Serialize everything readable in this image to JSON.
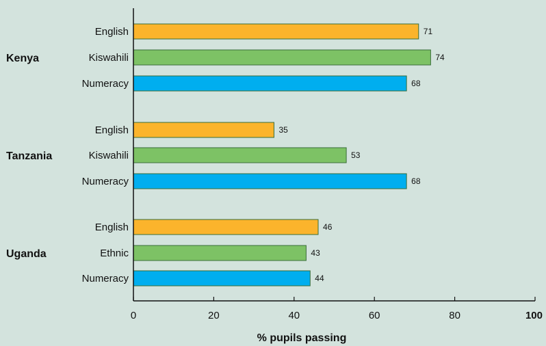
{
  "chart_data": {
    "type": "bar",
    "orientation": "horizontal",
    "xlabel": "% pupils passing",
    "xlim": [
      0,
      100
    ],
    "xticks": [
      {
        "label": "0",
        "value": 0,
        "bold": false
      },
      {
        "label": "20",
        "value": 20,
        "bold": false
      },
      {
        "label": "40",
        "value": 40,
        "bold": false
      },
      {
        "label": "60",
        "value": 60,
        "bold": false
      },
      {
        "label": "80",
        "value": 80,
        "bold": false
      },
      {
        "label": "100",
        "value": 100,
        "bold": true
      }
    ],
    "colors": {
      "English": "#fbb42c",
      "Kiswahili": "#7dc265",
      "Ethnic": "#7dc265",
      "Numeracy": "#00aeef",
      "bar_edge": "#3a6e3a",
      "background": "#d3e3dd"
    },
    "groups": [
      {
        "name": "Kenya",
        "bars": [
          {
            "label": "English",
            "value": 71
          },
          {
            "label": "Kiswahili",
            "value": 74
          },
          {
            "label": "Numeracy",
            "value": 68
          }
        ]
      },
      {
        "name": "Tanzania",
        "bars": [
          {
            "label": "English",
            "value": 35
          },
          {
            "label": "Kiswahili",
            "value": 53
          },
          {
            "label": "Numeracy",
            "value": 68
          }
        ]
      },
      {
        "name": "Uganda",
        "bars": [
          {
            "label": "English",
            "value": 46
          },
          {
            "label": "Ethnic",
            "value": 43
          },
          {
            "label": "Numeracy",
            "value": 44
          }
        ]
      }
    ]
  }
}
